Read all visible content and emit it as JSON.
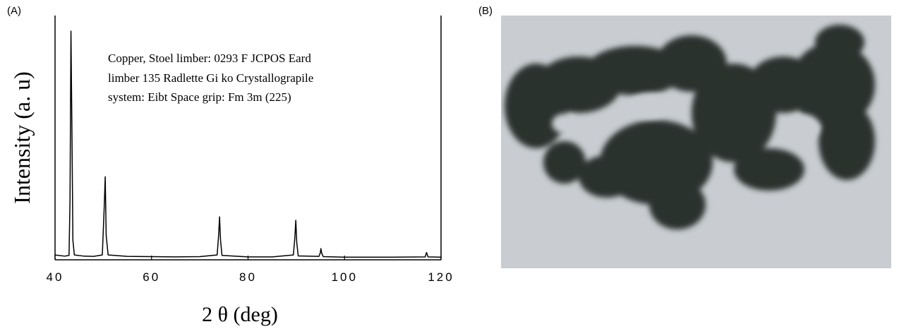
{
  "panel_labels": [
    "(A)",
    "(B)"
  ],
  "chart_data": {
    "type": "line",
    "y_label": "Intensity (a. u)",
    "x_label": "2 θ (deg)",
    "annotation": [
      "Copper, Stoel limber: 0293 F JCPOS Eard",
      "limber 135 Radlette Gi ko Crystallograpile",
      "system: Eibt Space grip: Fm 3m (225)"
    ],
    "x": [
      40,
      42,
      42.9,
      43.1,
      43.3,
      43.5,
      43.7,
      44,
      46,
      48,
      49.8,
      50.2,
      50.4,
      50.6,
      51,
      55,
      60,
      65,
      70,
      73.6,
      73.9,
      74.1,
      74.3,
      74.6,
      80,
      85,
      89.4,
      89.7,
      89.9,
      90.1,
      90.4,
      94.7,
      95.0,
      95.1,
      95.3,
      95.6,
      100,
      110,
      116.7,
      117,
      117.3,
      120
    ],
    "values": [
      2,
      1.5,
      1.8,
      24,
      93.6,
      53,
      8,
      2,
      1.5,
      1.4,
      2,
      22,
      34,
      10,
      2,
      1.4,
      1.3,
      1.2,
      1.3,
      2,
      10,
      17.6,
      8,
      1.8,
      1.2,
      1.2,
      2,
      9,
      16.2,
      7,
      1.6,
      1.4,
      3,
      4.6,
      2.5,
      1.3,
      1.1,
      1.1,
      1.2,
      3,
      1.2,
      1.1
    ],
    "color": "#000000",
    "xlim": [
      40,
      120
    ],
    "xticks": [
      40,
      60,
      80,
      100,
      120
    ],
    "ylim": [
      0,
      100
    ]
  }
}
